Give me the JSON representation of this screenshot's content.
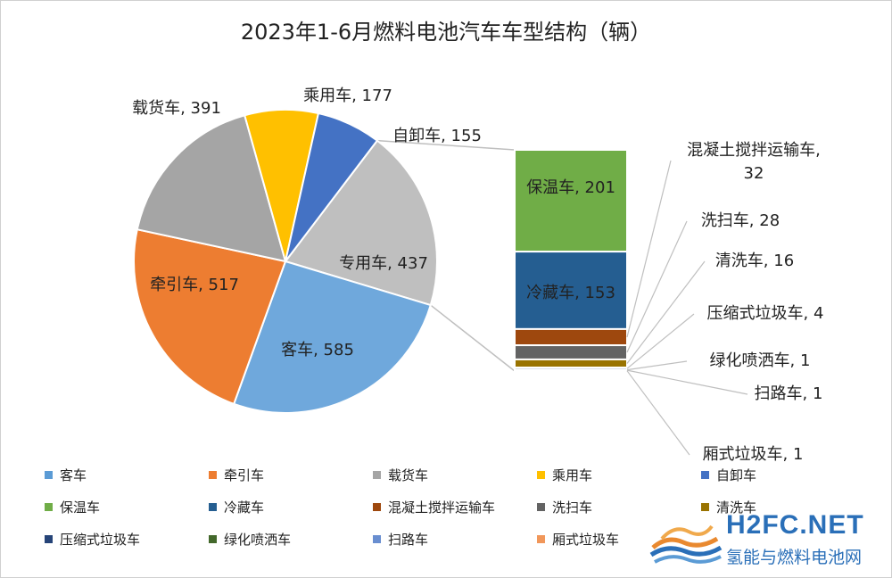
{
  "chart_data": {
    "type": "pie",
    "title": "2023年1-6月燃料电池汽车车型结构（辆）",
    "main_pie": {
      "slices": [
        {
          "name": "客车",
          "value": 585,
          "color": "#6fa8dc",
          "label": "客车, 585"
        },
        {
          "name": "牵引车",
          "value": 517,
          "color": "#ed7d31",
          "label": "牵引车, 517"
        },
        {
          "name": "载货车",
          "value": 391,
          "color": "#a5a5a5",
          "label": "载货车, 391"
        },
        {
          "name": "乘用车",
          "value": 177,
          "color": "#ffc000",
          "label": "乘用车, 177"
        },
        {
          "name": "自卸车",
          "value": 155,
          "color": "#4472c4",
          "label": "自卸车, 155"
        },
        {
          "name": "专用车",
          "value": 437,
          "color": "#bfbfbf",
          "label": "专用车, 437"
        }
      ]
    },
    "breakdown_bar": {
      "of": "专用车",
      "segments": [
        {
          "name": "保温车",
          "value": 201,
          "color": "#70ad47",
          "label": "保温车, 201"
        },
        {
          "name": "冷藏车",
          "value": 153,
          "color": "#255e91",
          "label": "冷藏车, 153"
        },
        {
          "name": "混凝土搅拌运输车",
          "value": 32,
          "color": "#9e480e",
          "label_line1": "混凝土搅拌运输车,",
          "label_line2": "32"
        },
        {
          "name": "洗扫车",
          "value": 28,
          "color": "#636363",
          "label": "洗扫车, 28"
        },
        {
          "name": "清洗车",
          "value": 16,
          "color": "#997300",
          "label": "清洗车, 16"
        },
        {
          "name": "压缩式垃圾车",
          "value": 4,
          "color": "#264478",
          "label": "压缩式垃圾车, 4"
        },
        {
          "name": "绿化喷洒车",
          "value": 1,
          "color": "#43682b",
          "label": "绿化喷洒车, 1"
        },
        {
          "name": "扫路车",
          "value": 1,
          "color": "#698ed0",
          "label": "扫路车, 1"
        },
        {
          "name": "厢式垃圾车",
          "value": 1,
          "color": "#f1975a",
          "label": "厢式垃圾车, 1"
        }
      ]
    },
    "legend": {
      "placement": "bottom",
      "items": [
        {
          "name": "客车",
          "color": "#5b9bd5"
        },
        {
          "name": "牵引车",
          "color": "#ed7d31"
        },
        {
          "name": "载货车",
          "color": "#a5a5a5"
        },
        {
          "name": "乘用车",
          "color": "#ffc000"
        },
        {
          "name": "自卸车",
          "color": "#4472c4"
        },
        {
          "name": "保温车",
          "color": "#70ad47"
        },
        {
          "name": "冷藏车",
          "color": "#255e91"
        },
        {
          "name": "混凝土搅拌运输车",
          "color": "#9e480e"
        },
        {
          "name": "洗扫车",
          "color": "#636363"
        },
        {
          "name": "清洗车",
          "color": "#997300"
        },
        {
          "name": "压缩式垃圾车",
          "color": "#264478"
        },
        {
          "name": "绿化喷洒车",
          "color": "#43682b"
        },
        {
          "name": "扫路车",
          "color": "#698ed0"
        },
        {
          "name": "厢式垃圾车",
          "color": "#f1975a"
        }
      ]
    }
  },
  "watermark": {
    "domain": "H2FC.NET",
    "name": "氢能与燃料电池网"
  }
}
